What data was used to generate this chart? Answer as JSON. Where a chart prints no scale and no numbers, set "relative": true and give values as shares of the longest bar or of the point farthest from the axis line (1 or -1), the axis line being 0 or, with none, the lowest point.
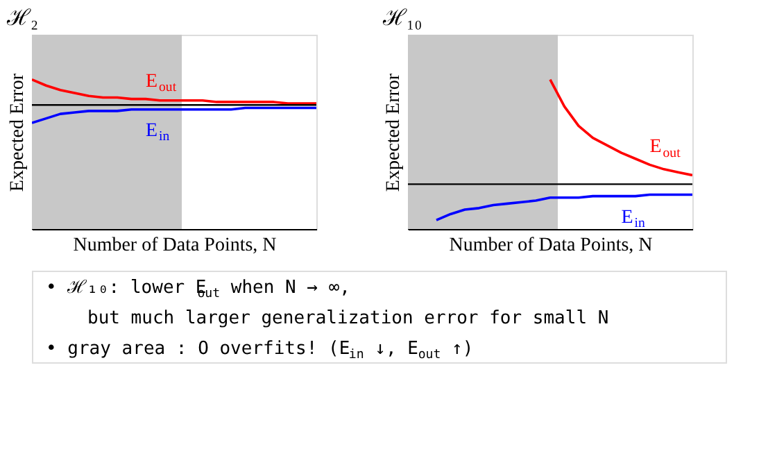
{
  "chart_data": [
    {
      "type": "line",
      "title": "ℋ₂",
      "xlabel": "Number of Data Points, N",
      "ylabel": "Expected Error",
      "relative": true,
      "categories": [
        null,
        null,
        null,
        null,
        null,
        null,
        null,
        null,
        null,
        null,
        null,
        null,
        null,
        null,
        null,
        null,
        null,
        null,
        null,
        null,
        null
      ],
      "series": [
        {
          "name": "E$_{out}$",
          "color": "#ff0000",
          "values": [
            1,
            0.96,
            0.93,
            0.91,
            0.89,
            0.88,
            0.88,
            0.87,
            0.87,
            0.86,
            0.86,
            0.86,
            0.86,
            0.85,
            0.85,
            0.85,
            0.85,
            0.85,
            0.84,
            0.84,
            0.84
          ]
        },
        {
          "name": "E$_{in}$",
          "color": "#0000ff",
          "values": [
            0.71,
            0.74,
            0.77,
            0.78,
            0.79,
            0.79,
            0.79,
            0.8,
            0.8,
            0.8,
            0.8,
            0.8,
            0.8,
            0.8,
            0.8,
            0.81,
            0.81,
            0.81,
            0.81,
            0.81,
            0.81
          ]
        }
      ],
      "ref_lines": [
        {
          "axis": "y",
          "value": 0.83,
          "color": "#000000"
        }
      ],
      "annotations": [
        "• ℋ₁₀: lower E$_{out}$ when N → ∞,",
        "but much larger generalization error for small N",
        "• gray area : O overfits! (E$_{in}$ ↓, E$_{out}$ ↑)"
      ]
    },
    {
      "type": "line",
      "title": "ℋ₁₀",
      "xlabel": "Number of Data Points, N",
      "ylabel": "Expected Error",
      "relative": true,
      "categories": [
        null,
        null,
        null,
        null,
        null,
        null,
        null,
        null,
        null,
        null,
        null,
        null,
        null,
        null,
        null,
        null,
        null,
        null,
        null,
        null,
        null
      ],
      "series": [
        {
          "name": "E$_{out}$",
          "color": "#ff0000",
          "values": [
            null,
            null,
            null,
            null,
            null,
            null,
            null,
            null,
            null,
            null,
            1,
            0.82,
            0.69,
            0.61,
            0.56,
            0.51,
            0.47,
            0.43,
            0.4,
            0.38,
            0.36
          ]
        },
        {
          "name": "E$_{in}$",
          "color": "#0000ff",
          "values": [
            null,
            null,
            0.06,
            0.1,
            0.13,
            0.14,
            0.16,
            0.17,
            0.18,
            0.19,
            0.21,
            0.21,
            0.21,
            0.22,
            0.22,
            0.22,
            0.22,
            0.23,
            0.23,
            0.23,
            0.23
          ]
        }
      ],
      "ref_lines": [
        {
          "axis": "y",
          "value": 0.3,
          "color": "#000000"
        }
      ]
    }
  ]
}
